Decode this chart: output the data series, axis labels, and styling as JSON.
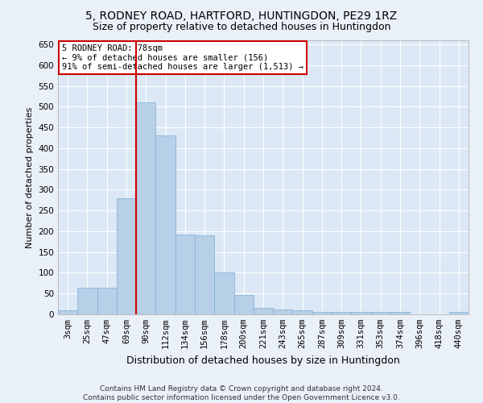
{
  "title1": "5, RODNEY ROAD, HARTFORD, HUNTINGDON, PE29 1RZ",
  "title2": "Size of property relative to detached houses in Huntingdon",
  "xlabel": "Distribution of detached houses by size in Huntingdon",
  "ylabel": "Number of detached properties",
  "footer1": "Contains HM Land Registry data © Crown copyright and database right 2024.",
  "footer2": "Contains public sector information licensed under the Open Government Licence v3.0.",
  "annotation_line1": "5 RODNEY ROAD: 78sqm",
  "annotation_line2": "← 9% of detached houses are smaller (156)",
  "annotation_line3": "91% of semi-detached houses are larger (1,513) →",
  "bar_labels": [
    "3sqm",
    "25sqm",
    "47sqm",
    "69sqm",
    "90sqm",
    "112sqm",
    "134sqm",
    "156sqm",
    "178sqm",
    "200sqm",
    "221sqm",
    "243sqm",
    "265sqm",
    "287sqm",
    "309sqm",
    "331sqm",
    "353sqm",
    "374sqm",
    "396sqm",
    "418sqm",
    "440sqm"
  ],
  "bar_values": [
    10,
    65,
    65,
    280,
    510,
    430,
    193,
    190,
    101,
    46,
    15,
    12,
    9,
    5,
    5,
    5,
    5,
    5,
    0,
    0,
    5
  ],
  "bar_color": "#b8cfe8",
  "bar_edge_color": "#7aafd4",
  "vline_color": "#cc0000",
  "ylim": [
    0,
    660
  ],
  "yticks": [
    0,
    50,
    100,
    150,
    200,
    250,
    300,
    350,
    400,
    450,
    500,
    550,
    600,
    650
  ],
  "bg_color": "#eaf0f8",
  "plot_bg": "#dce8f5",
  "annotation_box_color": "#cc0000",
  "title1_fontsize": 10,
  "title2_fontsize": 9,
  "xlabel_fontsize": 9,
  "ylabel_fontsize": 8,
  "footer_fontsize": 6.5,
  "tick_fontsize": 7.5
}
